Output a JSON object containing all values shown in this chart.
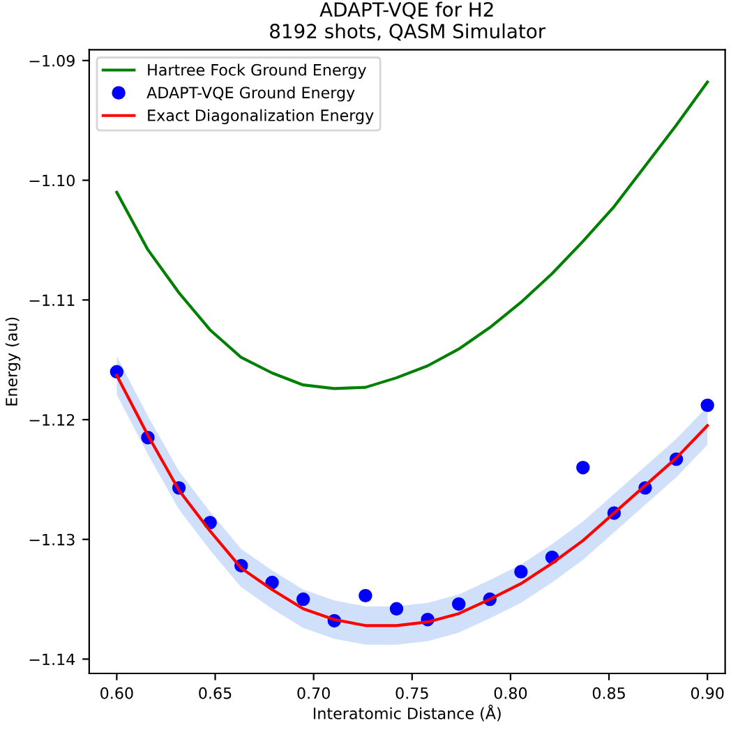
{
  "chart_data": {
    "type": "line",
    "title": "ADAPT-VQE for H2\n8192 shots, QASM Simulator",
    "xlabel": "Interatomic Distance (Å)",
    "ylabel": "Energy (au)",
    "x": [
      0.6,
      0.6158,
      0.6316,
      0.6474,
      0.6632,
      0.6789,
      0.6947,
      0.7105,
      0.7263,
      0.7421,
      0.7579,
      0.7737,
      0.7895,
      0.8053,
      0.8211,
      0.8368,
      0.8526,
      0.8684,
      0.8842,
      0.9
    ],
    "series": [
      {
        "name": "Hartree Fock Ground Energy",
        "color": "#008000",
        "values": [
          -1.101,
          -1.1058,
          -1.1094,
          -1.1125,
          -1.1148,
          -1.1161,
          -1.1171,
          -1.1174,
          -1.1173,
          -1.1165,
          -1.1155,
          -1.1141,
          -1.1123,
          -1.1102,
          -1.1078,
          -1.1051,
          -1.1022,
          -1.0988,
          -1.0954,
          -1.0918
        ]
      },
      {
        "name": "ADAPT-VQE Ground Energy",
        "type": "scatter",
        "marker": "circle",
        "color": "#0000ff",
        "values": [
          -1.116,
          -1.1215,
          -1.1257,
          -1.1286,
          -1.1322,
          -1.1336,
          -1.135,
          -1.1368,
          -1.1347,
          -1.1358,
          -1.1367,
          -1.1354,
          -1.135,
          -1.1327,
          -1.1315,
          -1.124,
          -1.1278,
          -1.1257,
          -1.1233,
          -1.1188
        ]
      },
      {
        "name": "Exact Diagonalization Energy",
        "color": "#ff0000",
        "values": [
          -1.1163,
          -1.1213,
          -1.1259,
          -1.1293,
          -1.1324,
          -1.1342,
          -1.1358,
          -1.1367,
          -1.1372,
          -1.1372,
          -1.1369,
          -1.1362,
          -1.135,
          -1.1337,
          -1.132,
          -1.1301,
          -1.1278,
          -1.1255,
          -1.1232,
          -1.1205
        ],
        "lower": [
          -1.1179,
          -1.1229,
          -1.1275,
          -1.1309,
          -1.134,
          -1.1358,
          -1.1374,
          -1.1383,
          -1.1388,
          -1.1388,
          -1.1385,
          -1.1378,
          -1.1366,
          -1.1353,
          -1.1336,
          -1.1317,
          -1.1294,
          -1.1271,
          -1.1248,
          -1.1221
        ],
        "upper": [
          -1.1147,
          -1.1197,
          -1.1243,
          -1.1277,
          -1.1308,
          -1.1326,
          -1.1342,
          -1.1351,
          -1.1356,
          -1.1356,
          -1.1353,
          -1.1346,
          -1.1334,
          -1.1321,
          -1.1304,
          -1.1285,
          -1.1262,
          -1.1239,
          -1.1216,
          -1.1189
        ]
      }
    ],
    "xlim": [
      0.586,
      0.909
    ],
    "ylim": [
      -1.1412,
      -1.0891
    ],
    "xticks": [
      {
        "value": 0.6,
        "label": "0.60"
      },
      {
        "value": 0.65,
        "label": "0.65"
      },
      {
        "value": 0.7,
        "label": "0.70"
      },
      {
        "value": 0.75,
        "label": "0.75"
      },
      {
        "value": 0.8,
        "label": "0.80"
      },
      {
        "value": 0.85,
        "label": "0.85"
      },
      {
        "value": 0.9,
        "label": "0.90"
      }
    ],
    "yticks": [
      {
        "value": -1.14,
        "label": "−1.14"
      },
      {
        "value": -1.13,
        "label": "−1.13"
      },
      {
        "value": -1.12,
        "label": "−1.12"
      },
      {
        "value": -1.11,
        "label": "−1.11"
      },
      {
        "value": -1.1,
        "label": "−1.10"
      },
      {
        "value": -1.09,
        "label": "−1.09"
      }
    ],
    "legend": "top left",
    "grid": false
  }
}
